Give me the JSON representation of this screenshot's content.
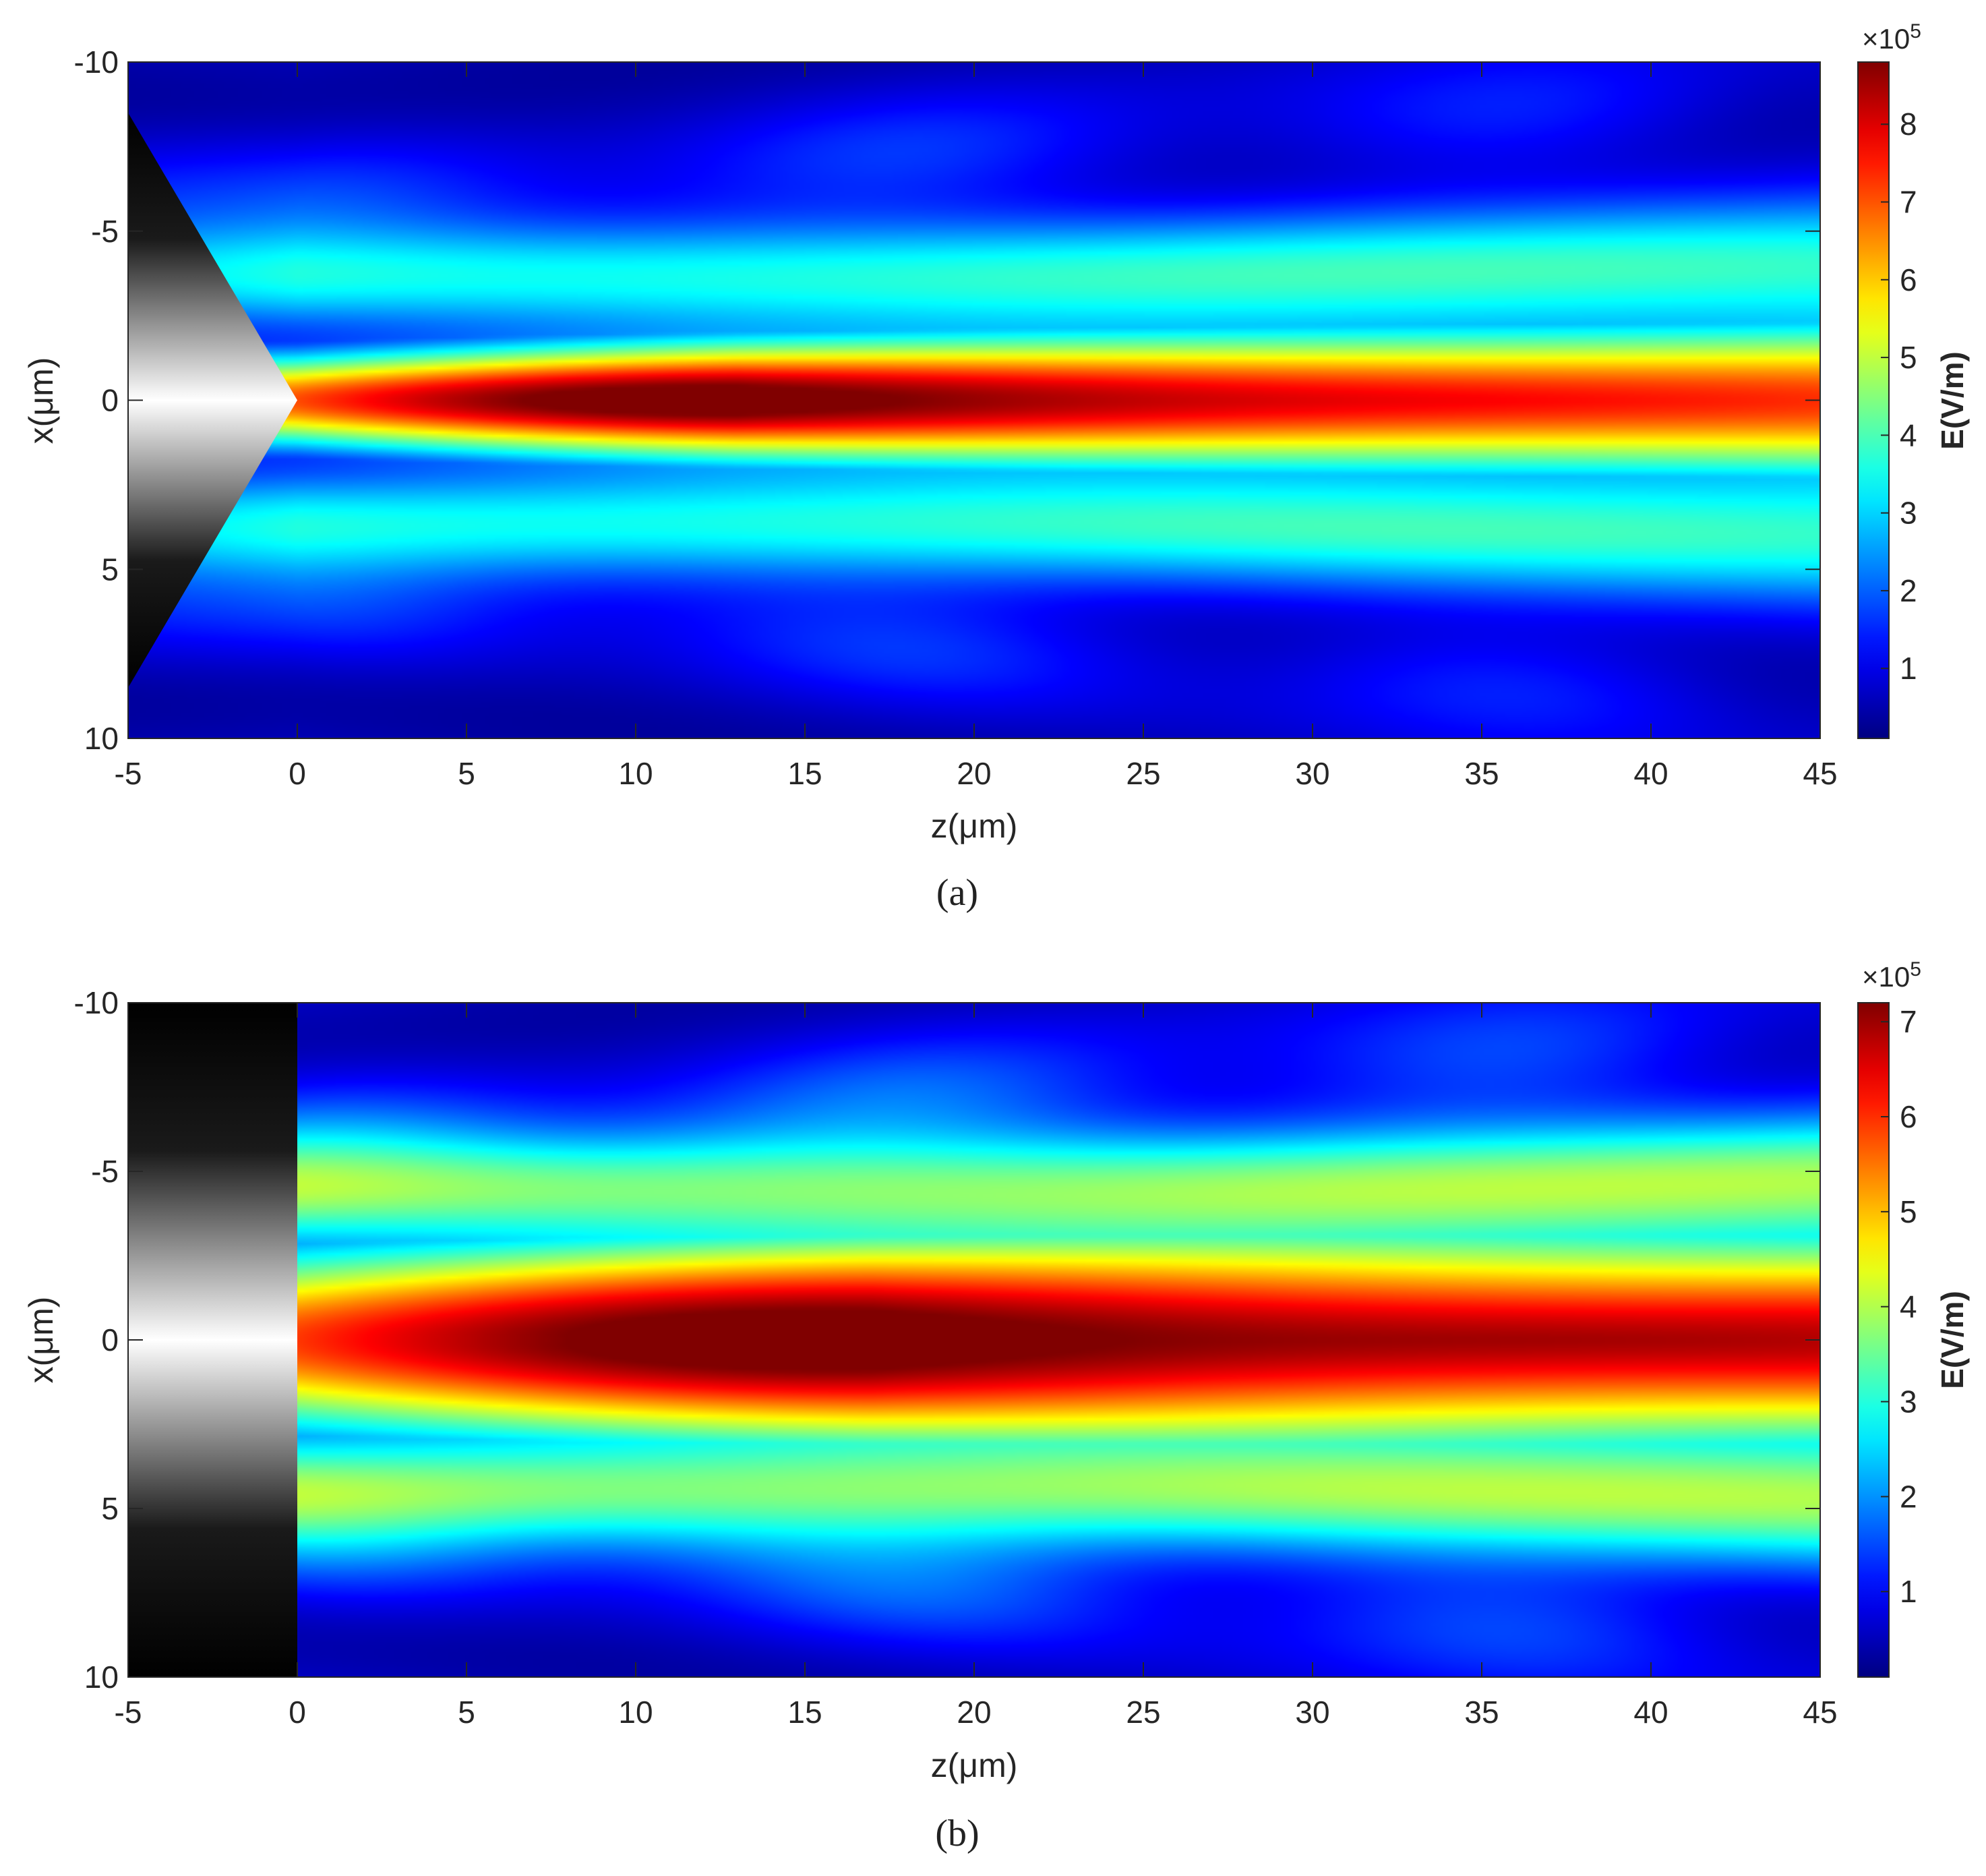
{
  "chart_data": [
    {
      "type": "heatmap",
      "panel_label": "(a)",
      "xlabel": "z(μm)",
      "ylabel": "x(μm)",
      "xlim": [
        -5,
        45
      ],
      "ylim": [
        -10,
        10
      ],
      "y_direction": "reversed",
      "x_ticks": [
        "-5",
        "0",
        "5",
        "10",
        "15",
        "20",
        "25",
        "30",
        "35",
        "40",
        "45"
      ],
      "y_ticks": [
        "-10",
        "-5",
        "0",
        "5",
        "10"
      ],
      "colorbar": {
        "label": "E(V/m)",
        "multiplier": "×10",
        "multiplier_exponent": "5",
        "ticks": [
          "1",
          "2",
          "3",
          "4",
          "5",
          "6",
          "7",
          "8"
        ],
        "range": [
          0.1,
          8.8
        ],
        "colormap": "jet"
      },
      "object": {
        "shape": "cone",
        "tip_z": 0,
        "base_z": -5,
        "base_half_width": 8.5
      },
      "field": {
        "peak_value": 8.8,
        "peak_z": 13,
        "end_value": 6.6,
        "beam_half_width_start": 0.9,
        "beam_half_width_end": 1.6,
        "side_lobe_offset": 3.6,
        "side_lobe_value": 3.1
      }
    },
    {
      "type": "heatmap",
      "panel_label": "(b)",
      "xlabel": "z(μm)",
      "ylabel": "x(μm)",
      "xlim": [
        -5,
        45
      ],
      "ylim": [
        -10,
        10
      ],
      "y_direction": "reversed",
      "x_ticks": [
        "-5",
        "0",
        "5",
        "10",
        "15",
        "20",
        "25",
        "30",
        "35",
        "40",
        "45"
      ],
      "y_ticks": [
        "-10",
        "-5",
        "0",
        "5",
        "10"
      ],
      "colorbar": {
        "label": "E(V/m)",
        "multiplier": "×10",
        "multiplier_exponent": "5",
        "ticks": [
          "1",
          "2",
          "3",
          "4",
          "5",
          "6",
          "7"
        ],
        "range": [
          0.1,
          7.2
        ],
        "colormap": "jet"
      },
      "object": {
        "shape": "flat",
        "end_z": 0,
        "base_z": -5,
        "half_width": 10
      },
      "field": {
        "peak_value": 7.2,
        "peak_z": 17,
        "end_value": 6.1,
        "beam_half_width_start": 1.9,
        "beam_half_width_end": 2.2,
        "side_lobe_offset": 4.4,
        "side_lobe_value": 3.0
      }
    }
  ]
}
